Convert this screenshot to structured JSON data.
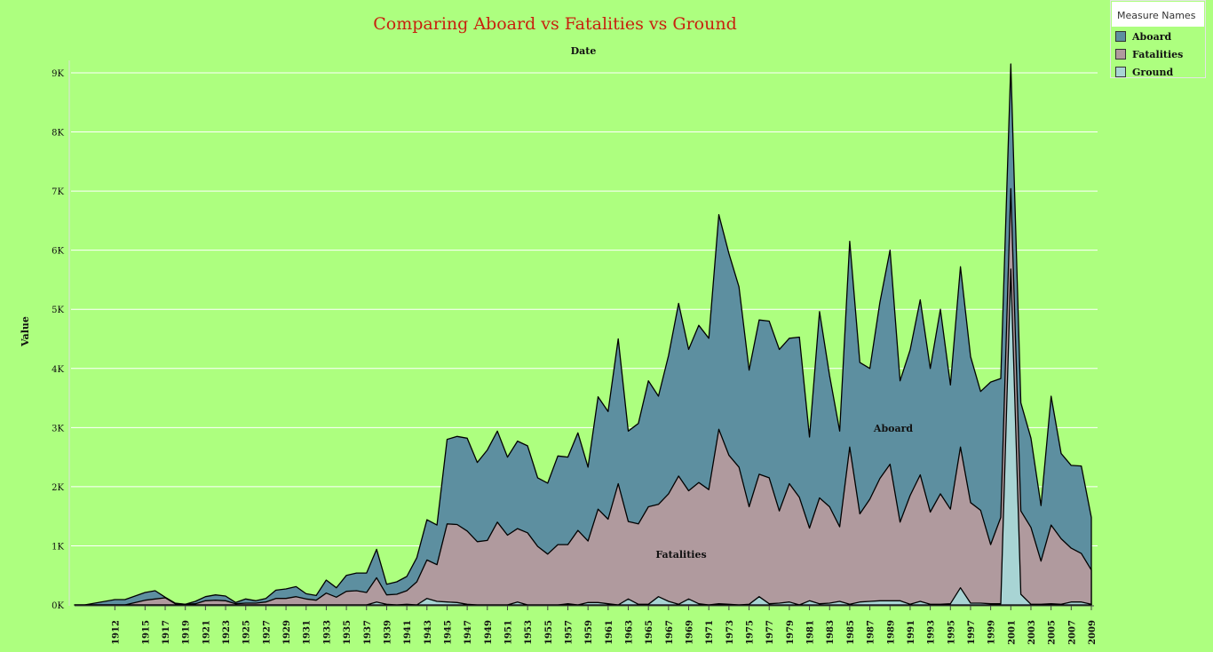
{
  "chart_data": {
    "type": "area",
    "title": "Comparing Aboard vs Fatalities vs Ground",
    "xlabel": "Date",
    "ylabel": "Value",
    "ylim": [
      0,
      9600
    ],
    "yticks": [
      0,
      1000,
      2000,
      3000,
      4000,
      5000,
      6000,
      7000,
      8000,
      9000
    ],
    "ytick_labels": [
      "0K",
      "1K",
      "2K",
      "3K",
      "4K",
      "5K",
      "6K",
      "7K",
      "8K",
      "9K"
    ],
    "xtick_labels": [
      "1912",
      "1915",
      "1917",
      "1919",
      "1921",
      "1923",
      "1925",
      "1927",
      "1929",
      "1931",
      "1933",
      "1935",
      "1937",
      "1939",
      "1941",
      "1943",
      "1945",
      "1947",
      "1949",
      "1951",
      "1953",
      "1955",
      "1957",
      "1959",
      "1961",
      "1963",
      "1965",
      "1967",
      "1969",
      "1971",
      "1973",
      "1975",
      "1977",
      "1979",
      "1981",
      "1983",
      "1985",
      "1987",
      "1989",
      "1991",
      "1993",
      "1995",
      "1997",
      "1999",
      "2001",
      "2003",
      "2005",
      "2007",
      "2009"
    ],
    "grid": true,
    "legend_position": "top-right",
    "legend_title": "Measure Names",
    "x": [
      1908,
      1909,
      1912,
      1913,
      1915,
      1916,
      1917,
      1918,
      1919,
      1920,
      1921,
      1922,
      1923,
      1924,
      1925,
      1926,
      1927,
      1928,
      1929,
      1930,
      1931,
      1932,
      1933,
      1934,
      1935,
      1936,
      1937,
      1938,
      1939,
      1940,
      1941,
      1942,
      1943,
      1944,
      1945,
      1946,
      1947,
      1948,
      1949,
      1950,
      1951,
      1952,
      1953,
      1954,
      1955,
      1956,
      1957,
      1958,
      1959,
      1960,
      1961,
      1962,
      1963,
      1964,
      1965,
      1966,
      1967,
      1968,
      1969,
      1970,
      1971,
      1972,
      1973,
      1974,
      1975,
      1976,
      1977,
      1978,
      1979,
      1980,
      1981,
      1982,
      1983,
      1984,
      1985,
      1986,
      1987,
      1988,
      1989,
      1990,
      1991,
      1992,
      1993,
      1994,
      1995,
      1996,
      1997,
      1998,
      1999,
      2000,
      2001,
      2002,
      2003,
      2004,
      2005,
      2006,
      2007,
      2008,
      2009
    ],
    "series": [
      {
        "name": "Aboard",
        "color": "#5d8fa0",
        "values": [
          0,
          0,
          90,
          90,
          210,
          240,
          130,
          30,
          10,
          60,
          140,
          170,
          150,
          40,
          100,
          70,
          110,
          250,
          270,
          310,
          190,
          160,
          420,
          290,
          500,
          540,
          540,
          940,
          350,
          390,
          480,
          800,
          1440,
          1350,
          2800,
          2850,
          2820,
          2410,
          2620,
          2940,
          2500,
          2770,
          2690,
          2150,
          2060,
          2520,
          2500,
          2910,
          2330,
          3520,
          3270,
          4500,
          2940,
          3070,
          3790,
          3530,
          4220,
          5100,
          4320,
          4730,
          4510,
          6600,
          5940,
          5380,
          3970,
          4820,
          4800,
          4320,
          4510,
          4530,
          2840,
          4960,
          3880,
          2940,
          6150,
          4100,
          4000,
          5120,
          6000,
          3790,
          4310,
          5160,
          4000,
          5000,
          3720,
          5720,
          4200,
          3610,
          3770,
          3830,
          9150,
          3420,
          2820,
          1680,
          3530,
          2560,
          2360,
          2350,
          1480
        ]
      },
      {
        "name": "Fatalities",
        "color": "#b09a9e",
        "values": [
          0,
          0,
          0,
          0,
          80,
          100,
          120,
          20,
          10,
          20,
          70,
          80,
          70,
          20,
          30,
          30,
          50,
          110,
          110,
          140,
          100,
          80,
          200,
          130,
          230,
          240,
          210,
          460,
          170,
          180,
          240,
          390,
          760,
          680,
          1370,
          1360,
          1250,
          1070,
          1090,
          1400,
          1180,
          1290,
          1220,
          990,
          860,
          1020,
          1020,
          1260,
          1080,
          1620,
          1450,
          2050,
          1410,
          1370,
          1660,
          1700,
          1880,
          2180,
          1930,
          2070,
          1950,
          2970,
          2530,
          2330,
          1660,
          2210,
          2150,
          1590,
          2050,
          1820,
          1300,
          1810,
          1660,
          1320,
          2670,
          1540,
          1790,
          2140,
          2380,
          1400,
          1850,
          2200,
          1570,
          1880,
          1620,
          2670,
          1730,
          1600,
          1020,
          1480,
          7040,
          1590,
          1310,
          740,
          1350,
          1120,
          960,
          870,
          590
        ]
      },
      {
        "name": "Ground",
        "color": "#a8d4d4",
        "values": [
          0,
          0,
          0,
          0,
          0,
          0,
          0,
          0,
          0,
          0,
          0,
          0,
          0,
          0,
          0,
          0,
          0,
          0,
          0,
          0,
          0,
          0,
          0,
          0,
          0,
          0,
          0,
          50,
          10,
          0,
          10,
          0,
          110,
          60,
          50,
          40,
          10,
          0,
          0,
          0,
          0,
          50,
          0,
          0,
          0,
          0,
          20,
          0,
          40,
          40,
          20,
          0,
          100,
          10,
          10,
          140,
          60,
          10,
          100,
          20,
          0,
          20,
          10,
          0,
          10,
          140,
          20,
          30,
          50,
          0,
          70,
          20,
          30,
          60,
          10,
          50,
          60,
          70,
          70,
          70,
          10,
          60,
          10,
          10,
          20,
          290,
          30,
          30,
          20,
          20,
          5680,
          180,
          10,
          10,
          20,
          10,
          50,
          50,
          10
        ]
      }
    ],
    "annotations": [
      "Aboard",
      "Fatalities"
    ]
  }
}
